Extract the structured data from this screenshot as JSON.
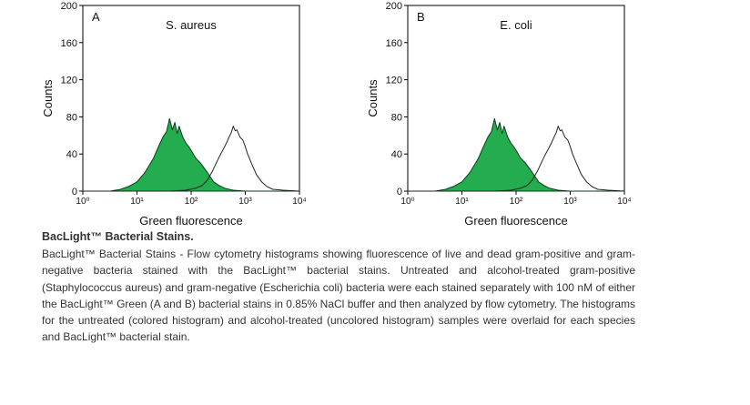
{
  "chart_data": [
    {
      "type": "area",
      "panel_label": "A",
      "title": "S. aureus",
      "xlabel": "Green fluorescence",
      "ylabel": "Counts",
      "x_scale": "log",
      "xlim": [
        1,
        10000
      ],
      "ylim": [
        0,
        200
      ],
      "x_ticks": [
        "10⁰",
        "10¹",
        "10²",
        "10³",
        "10⁴"
      ],
      "y_ticks": [
        "0",
        "40",
        "80",
        "120",
        "160",
        "200"
      ],
      "fill_color": "#23ad4f",
      "series": [
        {
          "description": "untreated (colored histogram)",
          "x": [
            1,
            3.2,
            5,
            7,
            10,
            14,
            20,
            25,
            30,
            35,
            40,
            45,
            50,
            55,
            60,
            70,
            80,
            90,
            100,
            120,
            150,
            200,
            260,
            330,
            420,
            600,
            1000,
            10000
          ],
          "y": [
            0,
            0,
            2,
            5,
            10,
            20,
            35,
            48,
            58,
            64,
            78,
            66,
            74,
            62,
            70,
            58,
            52,
            48,
            44,
            36,
            30,
            20,
            10,
            6,
            3,
            1,
            0,
            0
          ]
        },
        {
          "description": "alcohol-treated (uncolored histogram)",
          "x": [
            1,
            40,
            80,
            120,
            160,
            200,
            250,
            300,
            350,
            400,
            450,
            500,
            550,
            600,
            650,
            700,
            800,
            900,
            1000,
            1100,
            1300,
            1600,
            2000,
            2500,
            3200,
            5000,
            10000
          ],
          "y": [
            0,
            0,
            1,
            3,
            6,
            12,
            22,
            32,
            40,
            46,
            52,
            58,
            63,
            70,
            65,
            66,
            58,
            55,
            48,
            40,
            30,
            18,
            10,
            5,
            2,
            1,
            0
          ]
        }
      ]
    },
    {
      "type": "area",
      "panel_label": "B",
      "title": "E. coli",
      "xlabel": "Green fluorescence",
      "ylabel": "Counts",
      "x_scale": "log",
      "xlim": [
        1,
        10000
      ],
      "ylim": [
        0,
        200
      ],
      "x_ticks": [
        "10⁰",
        "10¹",
        "10²",
        "10³",
        "10⁴"
      ],
      "y_ticks": [
        "0",
        "40",
        "80",
        "120",
        "160",
        "200"
      ],
      "fill_color": "#23ad4f",
      "series": [
        {
          "description": "untreated (colored histogram)",
          "x": [
            1,
            3.2,
            5,
            7,
            10,
            14,
            20,
            25,
            30,
            35,
            40,
            45,
            50,
            55,
            60,
            70,
            80,
            90,
            100,
            120,
            150,
            200,
            260,
            330,
            420,
            600,
            1000,
            10000
          ],
          "y": [
            0,
            0,
            2,
            5,
            10,
            20,
            35,
            48,
            58,
            64,
            78,
            66,
            74,
            62,
            70,
            58,
            52,
            48,
            44,
            36,
            30,
            20,
            10,
            6,
            3,
            1,
            0,
            0
          ]
        },
        {
          "description": "alcohol-treated (uncolored histogram)",
          "x": [
            1,
            40,
            80,
            120,
            160,
            200,
            250,
            300,
            350,
            400,
            450,
            500,
            550,
            600,
            650,
            700,
            800,
            900,
            1000,
            1100,
            1300,
            1600,
            2000,
            2500,
            3200,
            5000,
            10000
          ],
          "y": [
            0,
            0,
            1,
            3,
            6,
            12,
            22,
            32,
            40,
            46,
            52,
            58,
            63,
            70,
            65,
            66,
            58,
            55,
            48,
            40,
            30,
            18,
            10,
            5,
            2,
            1,
            0
          ]
        }
      ]
    }
  ],
  "caption": {
    "title": "BacLight™ Bacterial Stains.",
    "body": "BacLight™ Bacterial Stains - Flow cytometry histograms showing fluorescence of live and dead gram-positive and gram-negative bacteria stained with the BacLight™ bacterial stains. Untreated and alcohol-treated gram-positive (Staphylococcus aureus) and gram-negative (Escherichia coli) bacteria were each stained separately with 100 nM of either the BacLight™ Green (A and B) bacterial stains in 0.85% NaCl buffer and then analyzed by flow cytometry. The histograms for the untreated (colored histogram) and alcohol-treated (uncolored histogram) samples were overlaid for each species and BacLight™ bacterial stain."
  }
}
